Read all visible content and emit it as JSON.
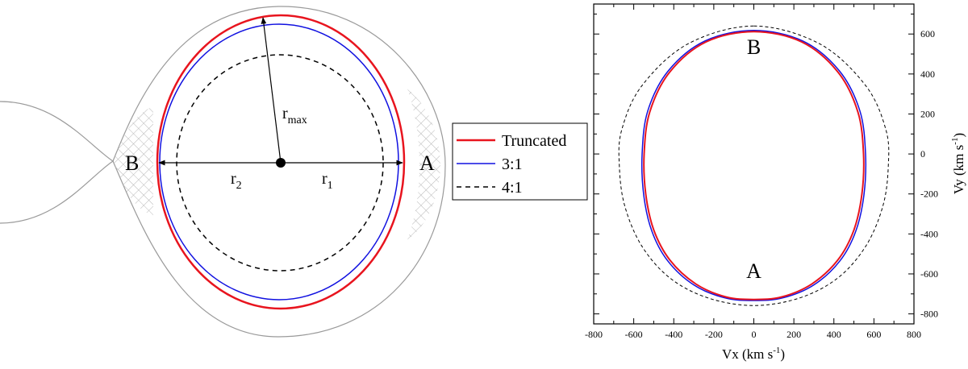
{
  "colors": {
    "truncated": "#e8141e",
    "resonance_3_1": "#1010e0",
    "resonance_4_1": "#000000",
    "roche_lobe": "#9a9a9a",
    "hatch": "#b8b8b8"
  },
  "diagram": {
    "labels": {
      "point_a": "A",
      "point_b": "B",
      "r_max": "r",
      "r_max_sub": "max",
      "r1": "r",
      "r1_sub": "1",
      "r2": "r",
      "r2_sub": "2"
    }
  },
  "legend": {
    "entries": [
      {
        "label": "Truncated",
        "style": "solid",
        "color_key": "truncated"
      },
      {
        "label": "3:1",
        "style": "solid",
        "color_key": "resonance_3_1"
      },
      {
        "label": "4:1",
        "style": "dashed",
        "color_key": "resonance_4_1"
      }
    ]
  },
  "chart_data": {
    "type": "line",
    "title": "",
    "xlabel": "Vx (km s",
    "xlabel_sup": "-1",
    "xlabel_close": ")",
    "ylabel": "Vy (km s",
    "ylabel_sup": "-1",
    "ylabel_close": ")",
    "xlim": [
      -800,
      800
    ],
    "ylim": [
      -850,
      750
    ],
    "xticks": [
      -800,
      -600,
      -400,
      -200,
      0,
      200,
      400,
      600,
      800
    ],
    "yticks": [
      -800,
      -600,
      -400,
      -200,
      0,
      200,
      400,
      600
    ],
    "yaxis_side": "right",
    "grid": false,
    "annotations": [
      {
        "text": "B",
        "x": 0,
        "y": 500
      },
      {
        "text": "A",
        "x": 0,
        "y": -620
      }
    ],
    "series": [
      {
        "name": "Truncated",
        "x": [
          0,
          240,
          420,
          520,
          548,
          540,
          500,
          420,
          290,
          140,
          0,
          -140,
          -290,
          -420,
          -500,
          -540,
          -548,
          -520,
          -420,
          -240,
          0
        ],
        "y": [
          612,
          560,
          410,
          210,
          0,
          -200,
          -380,
          -530,
          -650,
          -715,
          -728,
          -715,
          -650,
          -530,
          -380,
          -200,
          0,
          210,
          410,
          560,
          612
        ]
      },
      {
        "name": "3:1",
        "x": [
          0,
          245,
          428,
          530,
          558,
          550,
          510,
          430,
          300,
          145,
          0,
          -145,
          -300,
          -430,
          -510,
          -550,
          -558,
          -530,
          -428,
          -245,
          0
        ],
        "y": [
          618,
          565,
          415,
          215,
          0,
          -205,
          -385,
          -535,
          -655,
          -720,
          -733,
          -720,
          -655,
          -535,
          -385,
          -205,
          0,
          215,
          415,
          565,
          618
        ]
      },
      {
        "name": "4:1",
        "x": [
          0,
          330,
          560,
          660,
          672,
          645,
          560,
          420,
          230,
          0,
          -230,
          -420,
          -560,
          -645,
          -672,
          -660,
          -560,
          -330,
          0
        ],
        "y": [
          640,
          550,
          340,
          120,
          -60,
          -260,
          -460,
          -620,
          -720,
          -758,
          -720,
          -620,
          -460,
          -260,
          -60,
          120,
          340,
          550,
          640
        ]
      }
    ]
  }
}
